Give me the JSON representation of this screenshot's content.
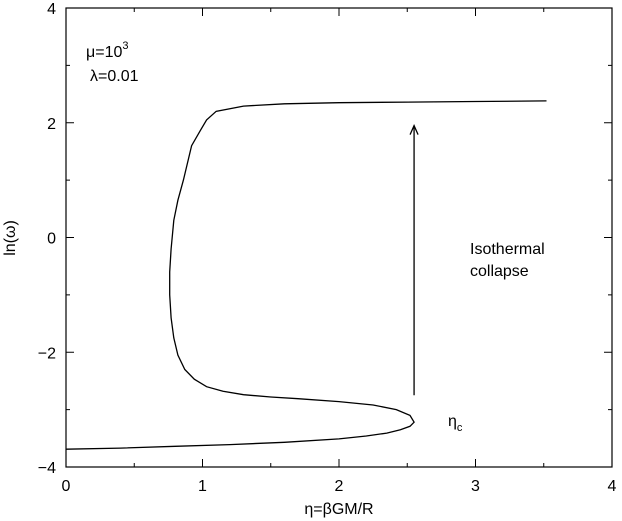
{
  "chart_data": {
    "type": "line",
    "xlabel": "η=βGM/R",
    "ylabel": "ln(ω)",
    "xlim": [
      0,
      4
    ],
    "ylim": [
      -4,
      4
    ],
    "xticks": [
      0,
      1,
      2,
      3,
      4
    ],
    "yticks": [
      -4,
      -2,
      0,
      2,
      4
    ],
    "x_tick_labels": [
      "0",
      "1",
      "2",
      "3",
      "4"
    ],
    "y_tick_labels": [
      "−4",
      "−2",
      "0",
      "2",
      "4"
    ],
    "grid": false,
    "series": [
      {
        "x": [
          0.0,
          0.4,
          0.8,
          1.2,
          1.6,
          2.0,
          2.2,
          2.35,
          2.45,
          2.52,
          2.55,
          2.52,
          2.42,
          2.25,
          2.0,
          1.7,
          1.5,
          1.3,
          1.15,
          1.03,
          0.94,
          0.87,
          0.82,
          0.79,
          0.77,
          0.76,
          0.76,
          0.77,
          0.79,
          0.82,
          0.86,
          0.92,
          0.98,
          1.03,
          1.1,
          1.3,
          1.6,
          2.0,
          2.5,
          3.0,
          3.52
        ],
        "y": [
          -3.69,
          -3.67,
          -3.64,
          -3.61,
          -3.57,
          -3.51,
          -3.46,
          -3.41,
          -3.35,
          -3.29,
          -3.22,
          -3.1,
          -3.0,
          -2.92,
          -2.86,
          -2.81,
          -2.78,
          -2.74,
          -2.68,
          -2.6,
          -2.47,
          -2.3,
          -2.05,
          -1.75,
          -1.4,
          -1.0,
          -0.6,
          -0.2,
          0.3,
          0.65,
          1.0,
          1.6,
          1.85,
          2.05,
          2.2,
          2.29,
          2.33,
          2.35,
          2.36,
          2.37,
          2.38
        ]
      }
    ],
    "arrow": {
      "x": 2.55,
      "y_start": -2.75,
      "y_end": 1.95
    },
    "annotations": {
      "mu_text": "μ=10",
      "mu_exp": "3",
      "lambda_text": "λ=0.01",
      "isothermal_line1": "Isothermal",
      "isothermal_line2": "collapse",
      "eta_c_main": "η",
      "eta_c_sub": "c"
    }
  }
}
